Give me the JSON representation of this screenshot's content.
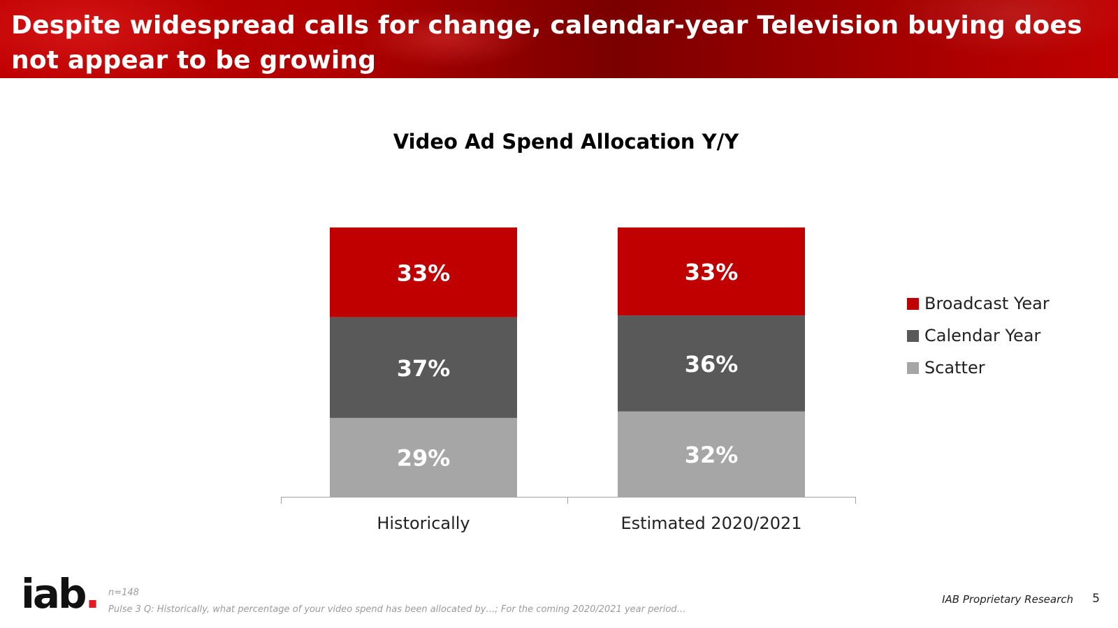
{
  "header": {
    "title": "Despite widespread calls for change, calendar-year Television buying does not appear to be growing"
  },
  "chart_data": {
    "type": "bar",
    "stacked": true,
    "title": "Video Ad Spend Allocation Y/Y",
    "categories": [
      "Historically",
      "Estimated 2020/2021"
    ],
    "series": [
      {
        "name": "Scatter",
        "values": [
          29,
          32
        ],
        "labels": [
          "29%",
          "32%"
        ],
        "color": "#a6a6a6"
      },
      {
        "name": "Calendar Year",
        "values": [
          37,
          36
        ],
        "labels": [
          "37%",
          "36%"
        ],
        "color": "#595959"
      },
      {
        "name": "Broadcast Year",
        "values": [
          33,
          33
        ],
        "labels": [
          "33%",
          "33%"
        ],
        "color": "#c00000"
      }
    ],
    "legend_order": [
      "Broadcast Year",
      "Calendar Year",
      "Scatter"
    ],
    "legend_position": "right",
    "ylim": [
      0,
      100
    ],
    "grid": false,
    "unit": "%"
  },
  "legend": {
    "items": [
      {
        "label": "Broadcast Year",
        "color": "#c00000"
      },
      {
        "label": "Calendar Year",
        "color": "#595959"
      },
      {
        "label": "Scatter",
        "color": "#a6a6a6"
      }
    ]
  },
  "footer": {
    "logo_text": "iab",
    "logo_dot": ".",
    "n": "n=148",
    "note": "Pulse 3 Q: Historically, what percentage of your video spend has been allocated by…; For the coming 2020/2021 year period…",
    "proprietary": "IAB Proprietary Research",
    "page_number": "5"
  },
  "colors": {
    "brand_red": "#c00000",
    "logo_dot": "#e31b23"
  }
}
